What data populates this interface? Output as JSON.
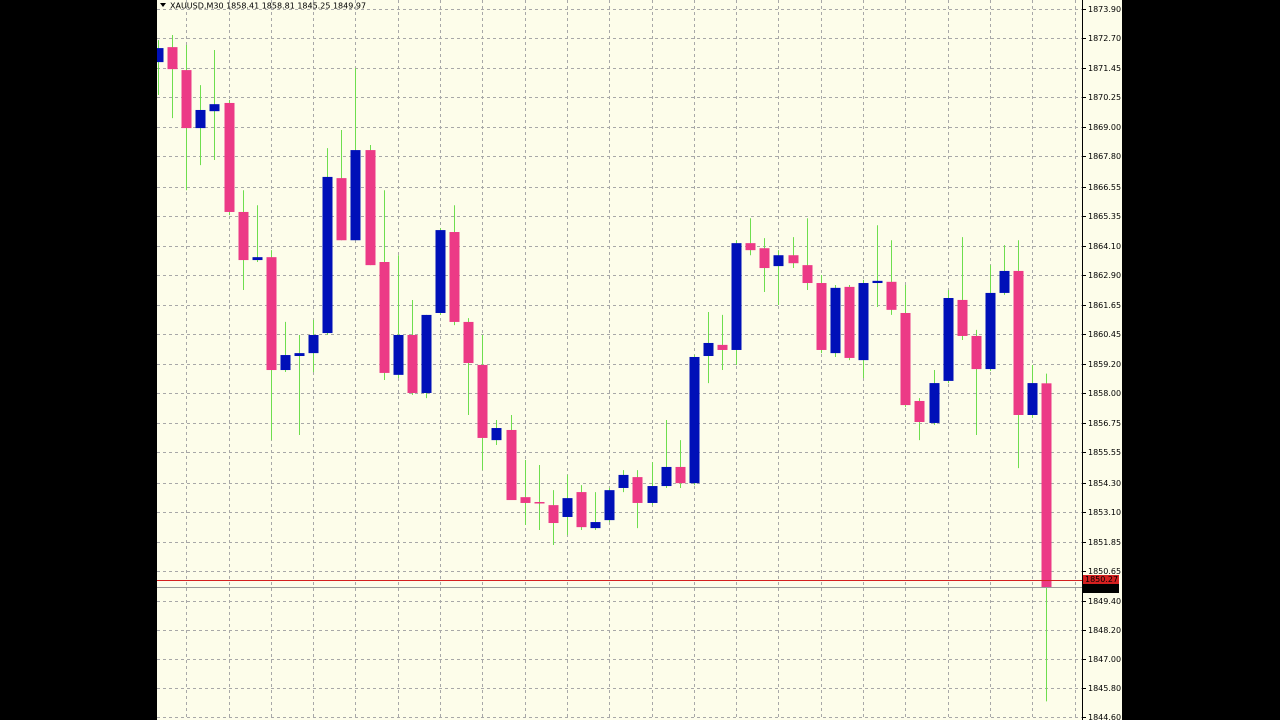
{
  "chart_data": {
    "type": "candlestick",
    "title": "XAUUSD,M30  1858.41 1858.81 1845.25 1849.97",
    "categories": [
      null,
      null,
      null,
      null,
      null,
      null,
      null,
      null,
      null,
      null,
      null,
      null,
      null,
      null,
      null,
      null,
      null,
      null,
      null,
      null,
      null,
      null,
      null,
      null,
      null,
      null,
      null,
      null,
      null,
      null,
      null,
      null,
      null,
      null,
      null,
      null,
      null,
      null,
      null,
      null,
      null,
      null,
      null,
      null,
      null,
      null,
      null,
      null,
      null,
      null,
      null,
      null,
      null,
      null,
      null,
      null,
      null,
      null,
      null,
      null,
      null,
      null,
      null,
      null
    ],
    "open": [
      1871.7,
      1872.32,
      1871.37,
      1868.97,
      1869.67,
      1870.01,
      1865.5,
      1863.51,
      1863.63,
      1858.96,
      1859.54,
      1859.66,
      1860.49,
      1866.9,
      1864.33,
      1868.06,
      1863.43,
      1858.76,
      1860.41,
      1858.01,
      1861.32,
      1864.67,
      1860.95,
      1859.17,
      1856.06,
      1856.48,
      1853.7,
      1853.5,
      1853.37,
      1852.88,
      1853.91,
      1852.42,
      1852.75,
      1854.08,
      1854.53,
      1853.46,
      1854.16,
      1854.95,
      1854.28,
      1859.54,
      1860.0,
      1859.79,
      1864.21,
      1864.0,
      1863.26,
      1863.71,
      1863.3,
      1862.56,
      1859.66,
      1862.4,
      1859.37,
      1862.56,
      1862.61,
      1861.32,
      1857.68,
      1856.77,
      1858.51,
      1861.86,
      1860.37,
      1859.0,
      1862.15,
      1863.06,
      1857.1,
      1858.41
    ],
    "high": [
      1872.61,
      1872.82,
      1872.41,
      1870.75,
      1872.2,
      1870.13,
      1866.4,
      1865.78,
      1863.92,
      1860.95,
      1860.41,
      1861.03,
      1868.14,
      1868.89,
      1871.45,
      1868.27,
      1866.4,
      1863.71,
      1861.86,
      1861.24,
      1864.83,
      1865.78,
      1861.11,
      1860.41,
      1856.89,
      1857.1,
      1855.24,
      1855.03,
      1853.99,
      1854.62,
      1854.2,
      1853.91,
      1854.08,
      1854.82,
      1854.82,
      1855.15,
      1856.89,
      1856.06,
      1859.58,
      1861.36,
      1861.24,
      1864.33,
      1865.24,
      1864.42,
      1863.92,
      1864.46,
      1865.24,
      1862.89,
      1862.48,
      1862.48,
      1862.69,
      1864.95,
      1864.33,
      1862.48,
      1857.8,
      1858.96,
      1862.27,
      1864.46,
      1860.62,
      1863.3,
      1864.13,
      1864.33,
      1859.17,
      1858.81
    ],
    "low": [
      1870.34,
      1869.38,
      1866.4,
      1867.44,
      1867.65,
      1865.37,
      1862.27,
      1863.43,
      1856.06,
      1858.88,
      1856.27,
      1858.88,
      1860.41,
      1864.33,
      1864.33,
      1863.3,
      1858.55,
      1858.63,
      1857.93,
      1857.8,
      1861.24,
      1860.82,
      1857.1,
      1854.82,
      1855.86,
      1853.58,
      1852.55,
      1852.34,
      1851.72,
      1852.13,
      1852.34,
      1852.34,
      1852.67,
      1853.91,
      1852.42,
      1853.37,
      1854.08,
      1854.08,
      1854.2,
      1858.42,
      1858.96,
      1859.17,
      1863.71,
      1862.19,
      1861.65,
      1863.18,
      1862.27,
      1859.66,
      1859.5,
      1859.37,
      1858.63,
      1861.57,
      1861.24,
      1857.43,
      1856.06,
      1856.69,
      1858.42,
      1860.2,
      1856.27,
      1858.92,
      1862.07,
      1854.9,
      1856.98,
      1845.25
    ],
    "close": [
      1872.28,
      1871.41,
      1868.97,
      1869.72,
      1869.96,
      1865.5,
      1863.51,
      1863.63,
      1858.96,
      1859.58,
      1859.66,
      1860.41,
      1866.95,
      1864.33,
      1868.06,
      1863.3,
      1858.84,
      1860.41,
      1858.01,
      1861.24,
      1864.75,
      1860.95,
      1859.25,
      1856.15,
      1856.56,
      1853.58,
      1853.46,
      1853.46,
      1852.63,
      1853.66,
      1852.46,
      1852.67,
      1853.99,
      1854.62,
      1853.46,
      1854.16,
      1854.95,
      1854.28,
      1859.5,
      1860.08,
      1859.79,
      1864.21,
      1863.92,
      1863.18,
      1863.71,
      1863.38,
      1862.56,
      1859.79,
      1862.36,
      1859.46,
      1862.56,
      1862.65,
      1861.45,
      1857.51,
      1856.81,
      1858.42,
      1861.94,
      1860.37,
      1859.0,
      1862.15,
      1863.06,
      1857.1,
      1858.42,
      1849.97
    ],
    "up_color": "#0010b8",
    "down_color": "#ec3a86",
    "wick_color": "#6ede4e",
    "ylim": [
      1844.48,
      1874.27
    ],
    "yticks": [
      {
        "value": 1873.9,
        "label": "1873.90"
      },
      {
        "value": 1872.7,
        "label": "1872.70"
      },
      1871.45,
      1870.25,
      {
        "value": 1869,
        "label": "1869.00"
      },
      {
        "value": 1867.8,
        "label": "1867.80"
      },
      1866.55,
      1865.35,
      {
        "value": 1864.1,
        "label": "1864.10"
      },
      {
        "value": 1862.9,
        "label": "1862.90"
      },
      1861.65,
      1860.45,
      {
        "value": 1859.2,
        "label": "1859.20"
      },
      {
        "value": 1858,
        "label": "1858.00"
      },
      1856.75,
      1855.55,
      {
        "value": 1854.3,
        "label": "1854.30"
      },
      {
        "value": 1853.1,
        "label": "1853.10"
      },
      1851.85,
      1850.65,
      {
        "value": 1849.4,
        "label": "1849.40"
      },
      {
        "value": 1848.2,
        "label": "1848.20"
      },
      {
        "value": 1847,
        "label": "1847.00"
      },
      {
        "value": 1845.8,
        "label": "1845.80"
      },
      {
        "value": 1844.6,
        "label": "1844.60"
      }
    ],
    "grid": true,
    "price_lines": [
      {
        "value": 1850.27,
        "label": "1850.27",
        "color": "#d42020"
      },
      {
        "value": 1849.97,
        "label": "1849.97",
        "color": "#000000"
      }
    ]
  }
}
